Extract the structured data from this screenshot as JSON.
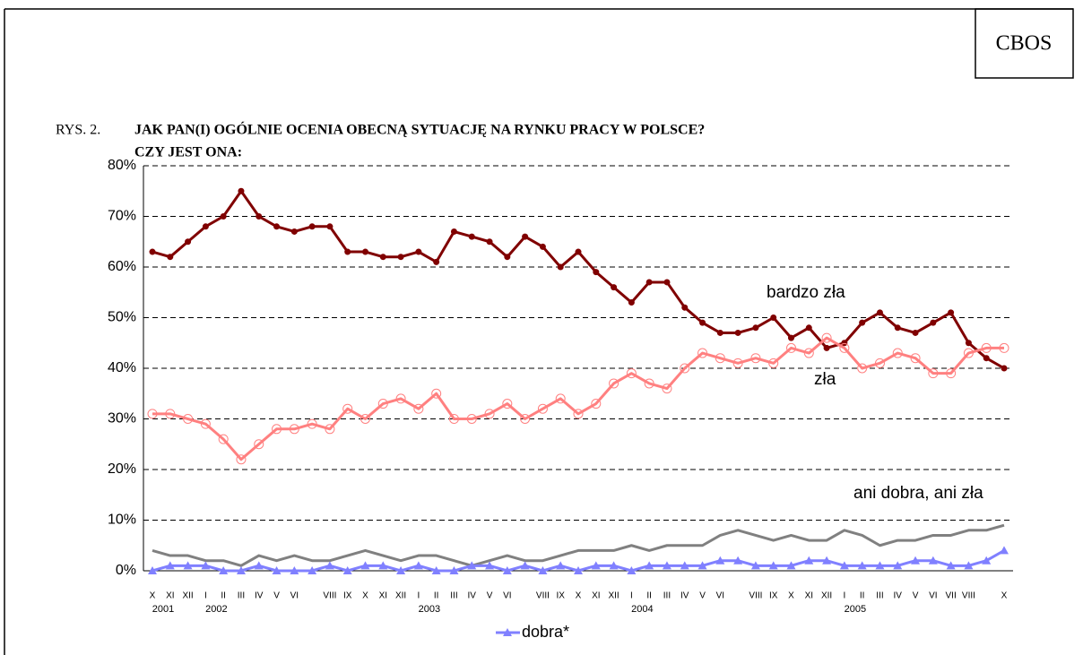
{
  "header": {
    "brand": "CBOS",
    "figure": "RYS. 2.",
    "title": [
      "JAK PAN(I) OGÓLNIE OCENIA OBECNĄ SYTUACJĘ NA RYNKU PRACY W POLSCE?",
      "CZY JEST ONA:"
    ]
  },
  "chart_data": {
    "type": "line",
    "categories": [
      "X",
      "XI",
      "XII",
      "I",
      "II",
      "III",
      "IV",
      "V",
      "VI",
      null,
      "VIII",
      "IX",
      "X",
      "XI",
      "XII",
      "I",
      "II",
      "III",
      "IV",
      "V",
      "VI",
      null,
      "VIII",
      "IX",
      "X",
      "XI",
      "XII",
      "I",
      "II",
      "III",
      "IV",
      "V",
      "VI",
      null,
      "VIII",
      "IX",
      "X",
      "XI",
      "XII",
      "I",
      "II",
      "III",
      "IV",
      "V",
      "VI",
      "VII",
      "VIII",
      null,
      "X"
    ],
    "years": [
      {
        "label": "2001",
        "index": 0
      },
      {
        "label": "2002",
        "index": 3
      },
      {
        "label": "2003",
        "index": 15
      },
      {
        "label": "2004",
        "index": 27
      },
      {
        "label": "2005",
        "index": 39
      }
    ],
    "series": [
      {
        "name": "bardzo zła",
        "color": "#800000",
        "marker": "dot",
        "values": [
          63,
          62,
          65,
          68,
          70,
          75,
          70,
          68,
          67,
          68,
          68,
          63,
          63,
          62,
          62,
          63,
          61,
          67,
          66,
          65,
          62,
          66,
          64,
          60,
          63,
          59,
          56,
          53,
          57,
          57,
          52,
          49,
          47,
          47,
          48,
          50,
          46,
          48,
          44,
          45,
          49,
          51,
          48,
          47,
          49,
          51,
          45,
          42,
          40
        ]
      },
      {
        "name": "zła",
        "color": "#ff8080",
        "marker": "ring",
        "values": [
          31,
          31,
          30,
          29,
          26,
          22,
          25,
          28,
          28,
          29,
          28,
          32,
          30,
          33,
          34,
          32,
          35,
          30,
          30,
          31,
          33,
          30,
          32,
          34,
          31,
          33,
          37,
          39,
          37,
          36,
          40,
          43,
          42,
          41,
          42,
          41,
          44,
          43,
          46,
          44,
          40,
          41,
          43,
          42,
          39,
          39,
          43,
          44,
          44
        ]
      },
      {
        "name": "ani dobra, ani zła",
        "color": "#808080",
        "marker": "none",
        "values": [
          4,
          3,
          3,
          2,
          2,
          1,
          3,
          2,
          3,
          2,
          2,
          3,
          4,
          3,
          2,
          3,
          3,
          2,
          1,
          2,
          3,
          2,
          2,
          3,
          4,
          4,
          4,
          5,
          4,
          5,
          5,
          5,
          7,
          8,
          7,
          6,
          7,
          6,
          6,
          8,
          7,
          5,
          6,
          6,
          7,
          7,
          8,
          8,
          9
        ]
      },
      {
        "name": "dobra*",
        "color": "#8080ff",
        "marker": "triangle",
        "values": [
          0,
          1,
          1,
          1,
          0,
          0,
          1,
          0,
          0,
          0,
          1,
          0,
          1,
          1,
          0,
          1,
          0,
          0,
          1,
          1,
          0,
          1,
          0,
          1,
          0,
          1,
          1,
          0,
          1,
          1,
          1,
          1,
          2,
          2,
          1,
          1,
          1,
          2,
          2,
          1,
          1,
          1,
          1,
          2,
          2,
          1,
          1,
          2,
          4
        ]
      }
    ],
    "ylim": [
      0,
      80
    ],
    "yticks": [
      {
        "value": 0,
        "label": "0%"
      },
      {
        "value": 10,
        "label": "10%"
      },
      {
        "value": 20,
        "label": "20%"
      },
      {
        "value": 30,
        "label": "30%"
      },
      {
        "value": 40,
        "label": "40%"
      },
      {
        "value": 50,
        "label": "50%"
      },
      {
        "value": 60,
        "label": "60%"
      },
      {
        "value": 70,
        "label": "70%"
      },
      {
        "value": 80,
        "label": "80%"
      }
    ],
    "grid": true
  }
}
